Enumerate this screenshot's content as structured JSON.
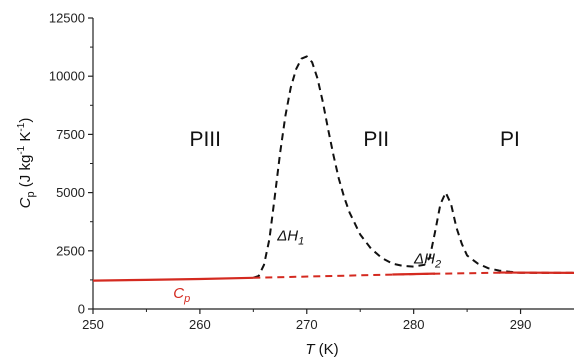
{
  "chart_data": {
    "type": "line",
    "xlabel": {
      "italic": "T",
      "rest": " (K)"
    },
    "ylabel": {
      "main": "C",
      "sub": "p",
      "units": " (J kg",
      "exp1": "-1",
      "mid": " K",
      "exp2": "-1",
      "close": ")"
    },
    "xlim": [
      250,
      295
    ],
    "ylim": [
      0,
      12500
    ],
    "xticks": [
      250,
      260,
      270,
      280,
      290
    ],
    "yticks": [
      0,
      2500,
      5000,
      7500,
      10000,
      12500
    ],
    "grid": false,
    "colors": {
      "total": "#111111",
      "baseline": "#d42a20"
    },
    "series": [
      {
        "name": "",
        "style": "dashed",
        "color": "#111111",
        "points": [
          [
            265.0,
            1340
          ],
          [
            265.5,
            1420
          ],
          [
            266.0,
            1900
          ],
          [
            266.5,
            3000
          ],
          [
            267.0,
            4800
          ],
          [
            267.5,
            6700
          ],
          [
            268.0,
            8300
          ],
          [
            268.5,
            9500
          ],
          [
            269.0,
            10300
          ],
          [
            269.5,
            10750
          ],
          [
            270.0,
            10850
          ],
          [
            270.5,
            10600
          ],
          [
            271.0,
            9900
          ],
          [
            271.5,
            8900
          ],
          [
            272.0,
            7700
          ],
          [
            272.5,
            6600
          ],
          [
            273.0,
            5600
          ],
          [
            273.5,
            4800
          ],
          [
            274.0,
            4150
          ],
          [
            275.0,
            3200
          ],
          [
            276.0,
            2600
          ],
          [
            277.0,
            2200
          ],
          [
            278.0,
            1950
          ],
          [
            279.0,
            1850
          ],
          [
            280.0,
            1820
          ],
          [
            281.0,
            1900
          ],
          [
            281.5,
            2200
          ],
          [
            282.0,
            3300
          ],
          [
            282.5,
            4500
          ],
          [
            283.0,
            5000
          ],
          [
            283.5,
            4500
          ],
          [
            284.0,
            3500
          ],
          [
            284.5,
            2800
          ],
          [
            285.0,
            2300
          ],
          [
            286.0,
            1950
          ],
          [
            287.0,
            1750
          ],
          [
            288.0,
            1650
          ],
          [
            289.0,
            1600
          ],
          [
            290.0,
            1560
          ],
          [
            292.0,
            1550
          ],
          [
            295.0,
            1550
          ]
        ]
      },
      {
        "name": "",
        "style": "dashed",
        "color": "#d42a20",
        "points": [
          [
            265.0,
            1340
          ],
          [
            280.0,
            1500
          ],
          [
            288.0,
            1560
          ],
          [
            295.0,
            1550
          ]
        ]
      },
      {
        "name": "",
        "style": "solid",
        "color": "#d42a20",
        "points": [
          [
            250.0,
            1220
          ],
          [
            255.0,
            1250
          ],
          [
            260.0,
            1290
          ],
          [
            265.0,
            1340
          ]
        ]
      },
      {
        "name": "",
        "style": "solid",
        "color": "#d42a20",
        "points": [
          [
            278.0,
            1480
          ],
          [
            282.0,
            1520
          ]
        ]
      },
      {
        "name": "",
        "style": "solid",
        "color": "#d42a20",
        "points": [
          [
            288.0,
            1570
          ],
          [
            295.0,
            1550
          ]
        ]
      }
    ],
    "annotations": [
      {
        "id": "phase-iii",
        "text": "PIII",
        "x": 260.5,
        "y": 7000,
        "style": "phase"
      },
      {
        "id": "phase-ii",
        "text": "PII",
        "x": 276.5,
        "y": 7000,
        "style": "phase"
      },
      {
        "id": "phase-i",
        "text": "PI",
        "x": 289.0,
        "y": 7000,
        "style": "phase"
      },
      {
        "id": "delta-h1",
        "text": "ΔH",
        "sub": "1",
        "x": 268.5,
        "y": 2950,
        "style": "italic"
      },
      {
        "id": "delta-h2",
        "text": "ΔH",
        "sub": "2",
        "x": 281.3,
        "y": 1950,
        "style": "italic"
      },
      {
        "id": "cp-label",
        "text": "C",
        "sub": "p",
        "x": 258.3,
        "y": 480,
        "style": "italic-red"
      }
    ]
  }
}
